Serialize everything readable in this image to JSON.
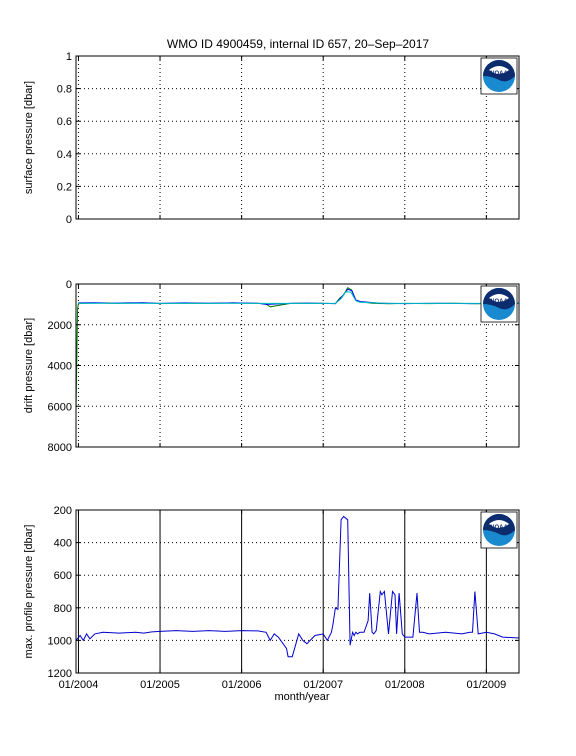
{
  "figure": {
    "title": "WMO ID 4900459, internal ID 657, 20–Sep–2017",
    "xlabel": "month/year",
    "x_tick_labels": [
      "01/2004",
      "01/2005",
      "01/2006",
      "01/2007",
      "01/2008",
      "01/2009"
    ],
    "logo_text": "NOAA"
  },
  "chart_data": [
    {
      "type": "line",
      "title": "WMO ID 4900459, internal ID 657, 20–Sep–2017",
      "ylabel": "surface pressure [dbar]",
      "xlabel": "",
      "ylim": [
        0,
        1
      ],
      "y_ticks": [
        0,
        0.2,
        0.4,
        0.6,
        0.8,
        1
      ],
      "y_tick_labels": [
        "0",
        "0.2",
        "0.4",
        "0.6",
        "0.8",
        "1"
      ],
      "x_ticks": [
        2004.0,
        2005.0,
        2006.0,
        2007.0,
        2008.0,
        2009.0
      ],
      "x_tick_labels": [
        "01/2004",
        "01/2005",
        "01/2006",
        "01/2007",
        "01/2008",
        "01/2009"
      ],
      "x_range": [
        2003.97,
        2009.4
      ],
      "grid": true,
      "y_reversed": false,
      "series": []
    },
    {
      "type": "line",
      "title": "",
      "ylabel": "drift pressure [dbar]",
      "xlabel": "",
      "ylim": [
        0,
        8000
      ],
      "y_ticks": [
        0,
        2000,
        4000,
        6000,
        8000
      ],
      "y_tick_labels": [
        "0",
        "2000",
        "4000",
        "6000",
        "8000"
      ],
      "x_ticks": [
        2004.0,
        2005.0,
        2006.0,
        2007.0,
        2008.0,
        2009.0
      ],
      "x_tick_labels": [
        "01/2004",
        "01/2005",
        "01/2006",
        "01/2007",
        "01/2008",
        "01/2009"
      ],
      "x_range": [
        2003.97,
        2009.4
      ],
      "grid": true,
      "y_reversed": true,
      "series": [
        {
          "color": "#008000",
          "x": [
            2003.97,
            2003.99,
            2004.0,
            2004.1,
            2004.3,
            2004.5,
            2004.8,
            2005.0,
            2005.3,
            2005.6,
            2005.9,
            2006.2,
            2006.3,
            2006.35,
            2006.6,
            2006.8,
            2007.0,
            2007.15,
            2007.2,
            2007.25,
            2007.3,
            2007.35,
            2007.4,
            2007.45,
            2007.6,
            2007.8,
            2008.0,
            2008.3,
            2008.6,
            2008.9,
            2009.0,
            2009.2,
            2009.4
          ],
          "y": [
            6200,
            1200,
            960,
            940,
            930,
            950,
            930,
            960,
            940,
            950,
            930,
            950,
            980,
            1120,
            950,
            940,
            950,
            960,
            700,
            540,
            180,
            300,
            800,
            870,
            940,
            970,
            950,
            960,
            940,
            970,
            950,
            940,
            950
          ]
        },
        {
          "color": "#0000ff",
          "x": [
            2004.0,
            2004.2,
            2004.4,
            2004.6,
            2004.8,
            2005.0,
            2005.3,
            2005.6,
            2005.9,
            2006.2,
            2006.3,
            2006.6,
            2006.8,
            2007.0,
            2007.15,
            2007.2,
            2007.25,
            2007.3,
            2007.35,
            2007.4,
            2007.45,
            2007.7,
            2008.0,
            2008.4,
            2008.8,
            2009.1,
            2009.4
          ],
          "y": [
            930,
            920,
            940,
            930,
            920,
            950,
            930,
            945,
            930,
            945,
            1000,
            950,
            935,
            950,
            960,
            760,
            520,
            260,
            330,
            780,
            860,
            945,
            960,
            945,
            960,
            950,
            945
          ]
        },
        {
          "color": "#00bfbf",
          "x": [
            2004.0,
            2004.5,
            2005.0,
            2005.5,
            2006.0,
            2006.5,
            2007.0,
            2007.15,
            2007.22,
            2007.28,
            2007.34,
            2007.4,
            2007.45,
            2007.8,
            2008.2,
            2008.6,
            2009.0,
            2009.4
          ],
          "y": [
            950,
            950,
            950,
            950,
            950,
            950,
            950,
            950,
            720,
            380,
            400,
            820,
            900,
            950,
            950,
            950,
            950,
            950
          ]
        }
      ]
    },
    {
      "type": "line",
      "title": "",
      "ylabel": "max. profile pressure [dbar]",
      "xlabel": "month/year",
      "ylim": [
        200,
        1200
      ],
      "y_ticks": [
        200,
        400,
        600,
        800,
        1000,
        1200
      ],
      "y_tick_labels": [
        "200",
        "400",
        "600",
        "800",
        "1000",
        "1200"
      ],
      "x_ticks": [
        2004.0,
        2005.0,
        2006.0,
        2007.0,
        2008.0,
        2009.0
      ],
      "x_tick_labels": [
        "01/2004",
        "01/2005",
        "01/2006",
        "01/2007",
        "01/2008",
        "01/2009"
      ],
      "x_range": [
        2003.97,
        2009.4
      ],
      "grid": true,
      "grid_solid_x": true,
      "y_reversed": true,
      "series": [
        {
          "color": "#0000cc",
          "x": [
            2003.97,
            2004.02,
            2004.06,
            2004.1,
            2004.14,
            2004.2,
            2004.3,
            2004.5,
            2004.7,
            2004.8,
            2004.9,
            2005.0,
            2005.2,
            2005.4,
            2005.6,
            2005.8,
            2006.0,
            2006.2,
            2006.3,
            2006.35,
            2006.4,
            2006.45,
            2006.55,
            2006.57,
            2006.62,
            2006.65,
            2006.7,
            2006.75,
            2006.8,
            2006.9,
            2007.0,
            2007.05,
            2007.1,
            2007.12,
            2007.15,
            2007.18,
            2007.22,
            2007.25,
            2007.3,
            2007.33,
            2007.36,
            2007.38,
            2007.4,
            2007.42,
            2007.45,
            2007.5,
            2007.55,
            2007.57,
            2007.6,
            2007.62,
            2007.65,
            2007.7,
            2007.72,
            2007.75,
            2007.8,
            2007.85,
            2007.88,
            2007.9,
            2007.93,
            2007.97,
            2008.0,
            2008.1,
            2008.15,
            2008.18,
            2008.22,
            2008.3,
            2008.5,
            2008.7,
            2008.8,
            2008.83,
            2008.86,
            2008.9,
            2009.0,
            2009.1,
            2009.2,
            2009.4
          ],
          "y": [
            1000,
            970,
            1000,
            960,
            990,
            960,
            950,
            955,
            950,
            955,
            948,
            945,
            940,
            945,
            940,
            945,
            940,
            942,
            950,
            1000,
            960,
            980,
            1050,
            1100,
            1100,
            1050,
            960,
            1000,
            1020,
            970,
            960,
            1000,
            950,
            900,
            800,
            810,
            260,
            240,
            260,
            1030,
            950,
            970,
            950,
            960,
            950,
            950,
            880,
            710,
            950,
            960,
            940,
            700,
            720,
            700,
            960,
            700,
            720,
            960,
            710,
            960,
            980,
            980,
            710,
            950,
            950,
            960,
            950,
            960,
            950,
            950,
            700,
            960,
            950,
            960,
            980,
            985
          ]
        }
      ]
    }
  ]
}
